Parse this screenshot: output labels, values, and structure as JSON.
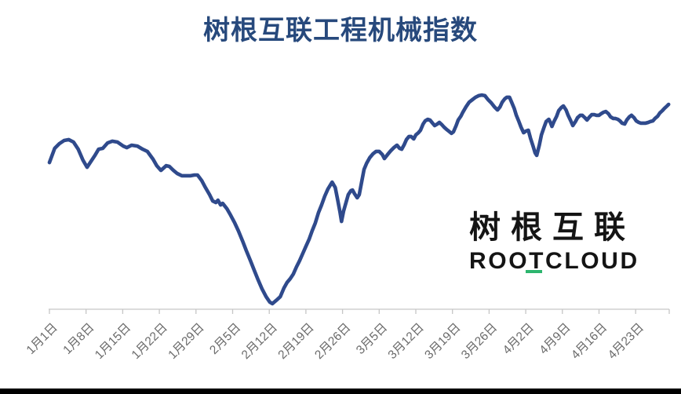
{
  "page_title": "树根互联工程机械指数",
  "chart_data": {
    "type": "line",
    "title": "树根互联工程机械指数",
    "x_axis": {
      "tick_labels": [
        "1月1日",
        "1月8日",
        "1月15日",
        "1月22日",
        "1月29日",
        "2月5日",
        "2月12日",
        "2月19日",
        "2月26日",
        "3月5日",
        "3月12日",
        "3月19日",
        "3月26日",
        "4月2日",
        "4月9日",
        "4月16日",
        "4月23日"
      ],
      "tick_interval_days": 7,
      "range_days": [
        1,
        120
      ]
    },
    "y_axis": {
      "visible": false,
      "ylim": [
        0,
        100
      ]
    },
    "grid": false,
    "legend": false,
    "series": [
      {
        "name": "树根互联工程机械指数",
        "color": "#2f4a8c",
        "points": [
          [
            1,
            65.8
          ],
          [
            2,
            72.2
          ],
          [
            2.9,
            74.3
          ],
          [
            3.8,
            75.7
          ],
          [
            4.7,
            76.1
          ],
          [
            5.6,
            75
          ],
          [
            6.5,
            71.8
          ],
          [
            7.4,
            66.9
          ],
          [
            8.2,
            63.7
          ],
          [
            8.9,
            66.2
          ],
          [
            9.7,
            69
          ],
          [
            10.4,
            71.8
          ],
          [
            11.2,
            72.2
          ],
          [
            12.1,
            74.6
          ],
          [
            13,
            75.4
          ],
          [
            14,
            75
          ],
          [
            15.1,
            73.2
          ],
          [
            15.8,
            72.5
          ],
          [
            16.7,
            73.6
          ],
          [
            17.8,
            73.2
          ],
          [
            18.8,
            71.8
          ],
          [
            19.7,
            70.8
          ],
          [
            20.8,
            67.3
          ],
          [
            21.5,
            64.4
          ],
          [
            22.3,
            62.3
          ],
          [
            23.3,
            64.4
          ],
          [
            23.9,
            64.1
          ],
          [
            24.7,
            62.3
          ],
          [
            25.4,
            60.9
          ],
          [
            26.3,
            59.9
          ],
          [
            27.2,
            59.9
          ],
          [
            28,
            59.9
          ],
          [
            28.7,
            60.2
          ],
          [
            29.3,
            60.2
          ],
          [
            30.1,
            57.7
          ],
          [
            30.8,
            54.6
          ],
          [
            31.6,
            51.4
          ],
          [
            32.2,
            48.6
          ],
          [
            32.8,
            47.9
          ],
          [
            33.2,
            48.9
          ],
          [
            33.7,
            46.8
          ],
          [
            34.1,
            47.5
          ],
          [
            34.9,
            45.1
          ],
          [
            35.6,
            42.3
          ],
          [
            36.4,
            38.7
          ],
          [
            37.1,
            35.2
          ],
          [
            37.9,
            30.6
          ],
          [
            38.6,
            26.4
          ],
          [
            39.4,
            21.8
          ],
          [
            40.1,
            17.6
          ],
          [
            40.9,
            13
          ],
          [
            41.6,
            9.2
          ],
          [
            42.4,
            5.6
          ],
          [
            43.1,
            3.2
          ],
          [
            43.6,
            2.5
          ],
          [
            44.3,
            3.9
          ],
          [
            45.1,
            5.6
          ],
          [
            45.8,
            9.5
          ],
          [
            46.4,
            12
          ],
          [
            47,
            13.7
          ],
          [
            47.6,
            15.8
          ],
          [
            48.2,
            19
          ],
          [
            48.8,
            21.8
          ],
          [
            49.4,
            25
          ],
          [
            50,
            28.2
          ],
          [
            50.6,
            31.3
          ],
          [
            51.2,
            35.2
          ],
          [
            51.8,
            38.7
          ],
          [
            52.4,
            43.3
          ],
          [
            53,
            46.8
          ],
          [
            53.6,
            50.7
          ],
          [
            54.2,
            53.9
          ],
          [
            55,
            57
          ],
          [
            55.6,
            54.6
          ],
          [
            56,
            50
          ],
          [
            56.5,
            43.7
          ],
          [
            56.8,
            39.4
          ],
          [
            57.2,
            44
          ],
          [
            57.7,
            48.2
          ],
          [
            58.1,
            51.4
          ],
          [
            58.6,
            53.2
          ],
          [
            58.9,
            53.5
          ],
          [
            59.3,
            51.8
          ],
          [
            59.8,
            50
          ],
          [
            60.2,
            51.4
          ],
          [
            60.7,
            57.7
          ],
          [
            61.1,
            62.7
          ],
          [
            61.6,
            65.5
          ],
          [
            62.2,
            68
          ],
          [
            62.8,
            69.7
          ],
          [
            63.4,
            70.8
          ],
          [
            64,
            70.8
          ],
          [
            64.6,
            69.4
          ],
          [
            65,
            67.6
          ],
          [
            65.6,
            69.4
          ],
          [
            66.2,
            71.1
          ],
          [
            66.8,
            72.5
          ],
          [
            67.4,
            73.6
          ],
          [
            67.9,
            72.2
          ],
          [
            68.3,
            71.8
          ],
          [
            68.8,
            73.9
          ],
          [
            69.2,
            76.1
          ],
          [
            69.7,
            77.5
          ],
          [
            70.1,
            77.5
          ],
          [
            70.6,
            76.4
          ],
          [
            71,
            78.2
          ],
          [
            71.5,
            79.2
          ],
          [
            71.9,
            80.3
          ],
          [
            72.4,
            83.1
          ],
          [
            72.8,
            84.5
          ],
          [
            73.3,
            85.2
          ],
          [
            73.7,
            84.9
          ],
          [
            74.2,
            83.5
          ],
          [
            74.6,
            82.4
          ],
          [
            75.1,
            83.1
          ],
          [
            75.5,
            83.8
          ],
          [
            76,
            82.7
          ],
          [
            76.4,
            81.7
          ],
          [
            76.9,
            80.6
          ],
          [
            77.3,
            79.9
          ],
          [
            77.8,
            78.9
          ],
          [
            78.2,
            79.6
          ],
          [
            78.7,
            82.4
          ],
          [
            79.1,
            84.9
          ],
          [
            79.6,
            86.6
          ],
          [
            80,
            88.4
          ],
          [
            80.6,
            90.8
          ],
          [
            81.2,
            92.9
          ],
          [
            81.8,
            94
          ],
          [
            82.4,
            95.1
          ],
          [
            83,
            95.8
          ],
          [
            83.6,
            96.1
          ],
          [
            84.2,
            95.8
          ],
          [
            84.8,
            94
          ],
          [
            85.4,
            92.6
          ],
          [
            86,
            90.8
          ],
          [
            86.6,
            89.4
          ],
          [
            87.1,
            90.8
          ],
          [
            87.5,
            92.9
          ],
          [
            88,
            94.4
          ],
          [
            88.4,
            95.1
          ],
          [
            88.9,
            95.1
          ],
          [
            89.3,
            92.9
          ],
          [
            89.8,
            90.1
          ],
          [
            90.2,
            87
          ],
          [
            90.7,
            84.2
          ],
          [
            91.1,
            81.7
          ],
          [
            91.6,
            79.2
          ],
          [
            92,
            79.9
          ],
          [
            92.5,
            80.3
          ],
          [
            92.9,
            76.8
          ],
          [
            93.4,
            73.2
          ],
          [
            93.8,
            70.1
          ],
          [
            94.1,
            69
          ],
          [
            94.6,
            73.6
          ],
          [
            95,
            78.2
          ],
          [
            95.5,
            81.7
          ],
          [
            95.9,
            84.2
          ],
          [
            96.4,
            85.2
          ],
          [
            96.7,
            83.8
          ],
          [
            97,
            82
          ],
          [
            97.4,
            84.2
          ],
          [
            97.9,
            86.6
          ],
          [
            98.3,
            89.1
          ],
          [
            98.8,
            90.5
          ],
          [
            99.2,
            91.2
          ],
          [
            99.7,
            89.4
          ],
          [
            100.1,
            87
          ],
          [
            100.6,
            84.5
          ],
          [
            101,
            82.4
          ],
          [
            101.5,
            84.2
          ],
          [
            101.9,
            85.9
          ],
          [
            102.4,
            87
          ],
          [
            102.8,
            87
          ],
          [
            103.3,
            85.9
          ],
          [
            103.7,
            84.9
          ],
          [
            104.2,
            86.3
          ],
          [
            104.6,
            87.3
          ],
          [
            105.1,
            87.3
          ],
          [
            105.5,
            87
          ],
          [
            106,
            87
          ],
          [
            106.4,
            87.7
          ],
          [
            106.9,
            88.4
          ],
          [
            107.3,
            88.7
          ],
          [
            107.8,
            87.7
          ],
          [
            108.2,
            86.3
          ],
          [
            108.7,
            85.6
          ],
          [
            109.1,
            85.6
          ],
          [
            109.6,
            85.2
          ],
          [
            110,
            84.5
          ],
          [
            110.4,
            83.5
          ],
          [
            110.9,
            83.1
          ],
          [
            111.3,
            84.9
          ],
          [
            111.8,
            86.3
          ],
          [
            112.2,
            87
          ],
          [
            112.7,
            85.9
          ],
          [
            113.1,
            84.5
          ],
          [
            113.6,
            83.8
          ],
          [
            114,
            83.5
          ],
          [
            114.5,
            83.5
          ],
          [
            114.9,
            83.5
          ],
          [
            115.4,
            83.8
          ],
          [
            115.8,
            84.2
          ],
          [
            116.3,
            84.5
          ],
          [
            116.7,
            85.6
          ],
          [
            117.2,
            86.6
          ],
          [
            117.6,
            88
          ],
          [
            118.1,
            89.1
          ],
          [
            118.5,
            90.1
          ],
          [
            119,
            91.2
          ],
          [
            119.3,
            91.9
          ]
        ]
      }
    ]
  },
  "watermark": {
    "cn": "树根互联",
    "en": "ROOTCLOUD",
    "underlined_letter": "T",
    "underline_color": "#2db56e",
    "text_color": "#141414"
  },
  "colors": {
    "title": "#27497c",
    "line": "#2f4a8c",
    "axis": "#c6c6c6",
    "tick_label": "#6b6b6b",
    "background": "#ffffff",
    "bottom_bar": "#000000"
  }
}
